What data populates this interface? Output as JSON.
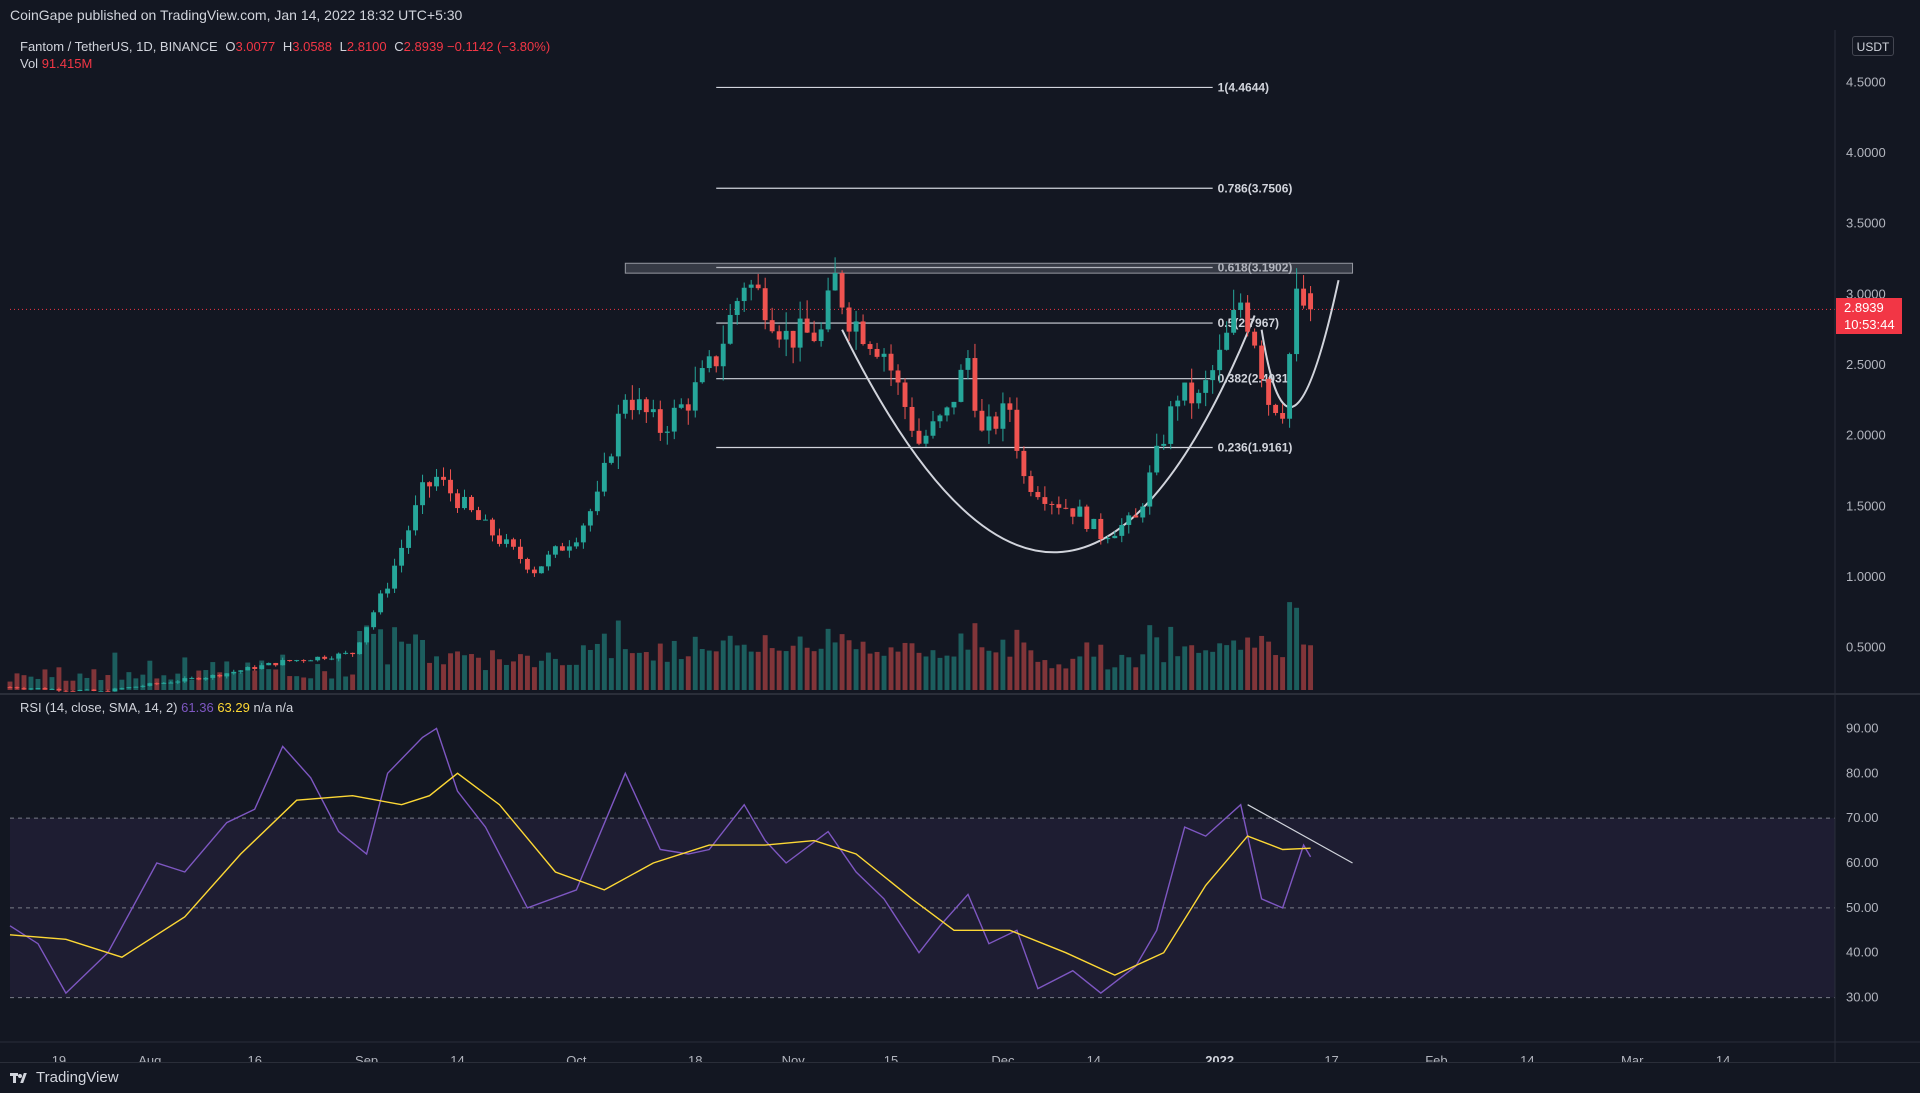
{
  "header": {
    "published": "CoinGape published on TradingView.com, Jan 14, 2022 18:32 UTC+5:30"
  },
  "symbol": {
    "title": "Fantom / TetherUS, 1D, BINANCE",
    "open_label": "O",
    "open": "3.0077",
    "high_label": "H",
    "high": "3.0588",
    "low_label": "L",
    "low": "2.8100",
    "close_label": "C",
    "close": "2.8939",
    "change": "−0.1142 (−3.80%)",
    "vol_label": "Vol",
    "vol": "91.415M"
  },
  "currency_button": "USDT",
  "last_price": {
    "price": "2.8939",
    "countdown": "10:53:44"
  },
  "rsi_legend": {
    "label": "RSI (14, close, SMA, 14, 2)",
    "rsi": "61.36",
    "sma": "63.29",
    "na1": "n/a",
    "na2": "n/a"
  },
  "footer": {
    "brand": "TradingView"
  },
  "colors": {
    "up": "#26a69a",
    "down": "#ef5350",
    "rsi": "#7e57c2",
    "rsi_ma": "#fdd835",
    "background": "#131722"
  },
  "chart_data": [
    {
      "type": "candlestick",
      "title": "Fantom / TetherUS, 1D, BINANCE",
      "y_scale": "linear",
      "ylim": [
        0.2,
        4.8
      ],
      "y_ticks": [
        "4.5000",
        "4.0000",
        "3.5000",
        "3.0000",
        "2.5000",
        "2.0000",
        "1.5000",
        "1.0000",
        "0.5000"
      ],
      "y_tick_values": [
        4.5,
        4.0,
        3.5,
        3.0,
        2.5,
        2.0,
        1.5,
        1.0,
        0.5
      ],
      "x_ticks": [
        "19",
        "Aug",
        "16",
        "Sep",
        "14",
        "Oct",
        "18",
        "Nov",
        "15",
        "Dec",
        "14",
        "2022",
        "17",
        "Feb",
        "14",
        "Mar",
        "14"
      ],
      "x_tick_dates": [
        "2021-07-19",
        "2021-08-01",
        "2021-08-16",
        "2021-09-01",
        "2021-09-14",
        "2021-10-01",
        "2021-10-18",
        "2021-11-01",
        "2021-11-15",
        "2021-12-01",
        "2021-12-14",
        "2022-01-01",
        "2022-01-17",
        "2022-02-01",
        "2022-02-14",
        "2022-03-01",
        "2022-03-14"
      ],
      "x_range": [
        "2021-07-12",
        "2022-03-30"
      ],
      "close_keypoints": [
        {
          "date": "2021-07-12",
          "close": 0.22
        },
        {
          "date": "2021-07-25",
          "close": 0.19
        },
        {
          "date": "2021-08-10",
          "close": 0.3
        },
        {
          "date": "2021-08-20",
          "close": 0.4
        },
        {
          "date": "2021-08-30",
          "close": 0.46
        },
        {
          "date": "2021-09-04",
          "close": 0.95
        },
        {
          "date": "2021-09-09",
          "close": 1.6
        },
        {
          "date": "2021-09-11",
          "close": 1.7
        },
        {
          "date": "2021-09-18",
          "close": 1.35
        },
        {
          "date": "2021-09-25",
          "close": 1.05
        },
        {
          "date": "2021-10-01",
          "close": 1.3
        },
        {
          "date": "2021-10-04",
          "close": 1.55
        },
        {
          "date": "2021-10-08",
          "close": 2.3
        },
        {
          "date": "2021-10-13",
          "close": 2.05
        },
        {
          "date": "2021-10-17",
          "close": 2.25
        },
        {
          "date": "2021-10-21",
          "close": 2.55
        },
        {
          "date": "2021-10-25",
          "close": 3.1
        },
        {
          "date": "2021-10-28",
          "close": 2.95
        },
        {
          "date": "2021-10-31",
          "close": 2.7
        },
        {
          "date": "2021-11-05",
          "close": 2.72
        },
        {
          "date": "2021-11-07",
          "close": 3.1
        },
        {
          "date": "2021-11-09",
          "close": 2.85
        },
        {
          "date": "2021-11-14",
          "close": 2.6
        },
        {
          "date": "2021-11-19",
          "close": 1.95
        },
        {
          "date": "2021-11-23",
          "close": 2.15
        },
        {
          "date": "2021-11-26",
          "close": 2.55
        },
        {
          "date": "2021-11-28",
          "close": 2.0
        },
        {
          "date": "2021-12-02",
          "close": 2.2
        },
        {
          "date": "2021-12-04",
          "close": 1.7
        },
        {
          "date": "2021-12-08",
          "close": 1.55
        },
        {
          "date": "2021-12-12",
          "close": 1.45
        },
        {
          "date": "2021-12-15",
          "close": 1.3
        },
        {
          "date": "2021-12-20",
          "close": 1.4
        },
        {
          "date": "2021-12-23",
          "close": 1.85
        },
        {
          "date": "2021-12-26",
          "close": 2.3
        },
        {
          "date": "2021-12-29",
          "close": 2.25
        },
        {
          "date": "2022-01-01",
          "close": 2.55
        },
        {
          "date": "2022-01-04",
          "close": 2.95
        },
        {
          "date": "2022-01-06",
          "close": 2.7
        },
        {
          "date": "2022-01-08",
          "close": 2.25
        },
        {
          "date": "2022-01-10",
          "close": 2.2
        },
        {
          "date": "2022-01-12",
          "close": 2.95
        },
        {
          "date": "2022-01-14",
          "close": 2.89
        }
      ],
      "volume_label": "Vol 91.415M",
      "fibonacci": [
        {
          "label": "1(4.4644)",
          "value": 4.4644
        },
        {
          "label": "0.786(3.7506)",
          "value": 3.7506
        },
        {
          "label": "0.618(3.1902)",
          "value": 3.1902
        },
        {
          "label": "0.5(2.7967)",
          "value": 2.7967
        },
        {
          "label": "0.382(2.4031)",
          "value": 2.4031
        },
        {
          "label": "0.236(1.9161)",
          "value": 1.9161
        }
      ],
      "fib_range": [
        "2021-10-21",
        "2021-12-31"
      ],
      "resistance_zone": {
        "from": "2021-10-08",
        "to": "2022-01-20",
        "low": 3.15,
        "high": 3.22
      },
      "last_price_line": 2.8939
    },
    {
      "type": "line",
      "title": "RSI (14, close, SMA, 14, 2)",
      "ylim": [
        25,
        95
      ],
      "y_ticks": [
        "90.00",
        "80.00",
        "70.00",
        "60.00",
        "50.00",
        "40.00",
        "30.00"
      ],
      "y_tick_values": [
        90,
        80,
        70,
        60,
        50,
        40,
        30
      ],
      "bands": {
        "upper": 70,
        "middle": 50,
        "lower": 30
      },
      "series": [
        {
          "name": "RSI",
          "points": [
            {
              "date": "2021-07-12",
              "v": 46
            },
            {
              "date": "2021-07-16",
              "v": 42
            },
            {
              "date": "2021-07-20",
              "v": 31
            },
            {
              "date": "2021-07-26",
              "v": 40
            },
            {
              "date": "2021-08-02",
              "v": 60
            },
            {
              "date": "2021-08-06",
              "v": 58
            },
            {
              "date": "2021-08-12",
              "v": 69
            },
            {
              "date": "2021-08-16",
              "v": 72
            },
            {
              "date": "2021-08-20",
              "v": 86
            },
            {
              "date": "2021-08-24",
              "v": 79
            },
            {
              "date": "2021-08-28",
              "v": 67
            },
            {
              "date": "2021-09-01",
              "v": 62
            },
            {
              "date": "2021-09-04",
              "v": 80
            },
            {
              "date": "2021-09-09",
              "v": 88
            },
            {
              "date": "2021-09-11",
              "v": 90
            },
            {
              "date": "2021-09-14",
              "v": 76
            },
            {
              "date": "2021-09-18",
              "v": 68
            },
            {
              "date": "2021-09-24",
              "v": 50
            },
            {
              "date": "2021-10-01",
              "v": 54
            },
            {
              "date": "2021-10-08",
              "v": 80
            },
            {
              "date": "2021-10-13",
              "v": 63
            },
            {
              "date": "2021-10-17",
              "v": 62
            },
            {
              "date": "2021-10-20",
              "v": 63
            },
            {
              "date": "2021-10-25",
              "v": 73
            },
            {
              "date": "2021-10-28",
              "v": 65
            },
            {
              "date": "2021-10-31",
              "v": 60
            },
            {
              "date": "2021-11-06",
              "v": 67
            },
            {
              "date": "2021-11-10",
              "v": 58
            },
            {
              "date": "2021-11-14",
              "v": 52
            },
            {
              "date": "2021-11-19",
              "v": 40
            },
            {
              "date": "2021-11-22",
              "v": 46
            },
            {
              "date": "2021-11-26",
              "v": 53
            },
            {
              "date": "2021-11-29",
              "v": 42
            },
            {
              "date": "2021-12-03",
              "v": 45
            },
            {
              "date": "2021-12-06",
              "v": 32
            },
            {
              "date": "2021-12-11",
              "v": 36
            },
            {
              "date": "2021-12-15",
              "v": 31
            },
            {
              "date": "2021-12-20",
              "v": 37
            },
            {
              "date": "2021-12-23",
              "v": 45
            },
            {
              "date": "2021-12-27",
              "v": 68
            },
            {
              "date": "2021-12-30",
              "v": 66
            },
            {
              "date": "2022-01-04",
              "v": 73
            },
            {
              "date": "2022-01-07",
              "v": 52
            },
            {
              "date": "2022-01-10",
              "v": 50
            },
            {
              "date": "2022-01-13",
              "v": 64
            },
            {
              "date": "2022-01-14",
              "v": 61.36
            }
          ]
        },
        {
          "name": "SMA",
          "points": [
            {
              "date": "2021-07-12",
              "v": 44
            },
            {
              "date": "2021-07-20",
              "v": 43
            },
            {
              "date": "2021-07-28",
              "v": 39
            },
            {
              "date": "2021-08-06",
              "v": 48
            },
            {
              "date": "2021-08-14",
              "v": 62
            },
            {
              "date": "2021-08-22",
              "v": 74
            },
            {
              "date": "2021-08-30",
              "v": 75
            },
            {
              "date": "2021-09-06",
              "v": 73
            },
            {
              "date": "2021-09-10",
              "v": 75
            },
            {
              "date": "2021-09-14",
              "v": 80
            },
            {
              "date": "2021-09-20",
              "v": 73
            },
            {
              "date": "2021-09-28",
              "v": 58
            },
            {
              "date": "2021-10-05",
              "v": 54
            },
            {
              "date": "2021-10-12",
              "v": 60
            },
            {
              "date": "2021-10-20",
              "v": 64
            },
            {
              "date": "2021-10-28",
              "v": 64
            },
            {
              "date": "2021-11-04",
              "v": 65
            },
            {
              "date": "2021-11-10",
              "v": 62
            },
            {
              "date": "2021-11-18",
              "v": 52
            },
            {
              "date": "2021-11-24",
              "v": 45
            },
            {
              "date": "2021-12-02",
              "v": 45
            },
            {
              "date": "2021-12-10",
              "v": 40
            },
            {
              "date": "2021-12-17",
              "v": 35
            },
            {
              "date": "2021-12-24",
              "v": 40
            },
            {
              "date": "2021-12-30",
              "v": 55
            },
            {
              "date": "2022-01-05",
              "v": 66
            },
            {
              "date": "2022-01-10",
              "v": 63
            },
            {
              "date": "2022-01-14",
              "v": 63.29
            }
          ]
        }
      ],
      "trendline": [
        {
          "date": "2022-01-05",
          "v": 73
        },
        {
          "date": "2022-01-20",
          "v": 60
        }
      ]
    }
  ]
}
